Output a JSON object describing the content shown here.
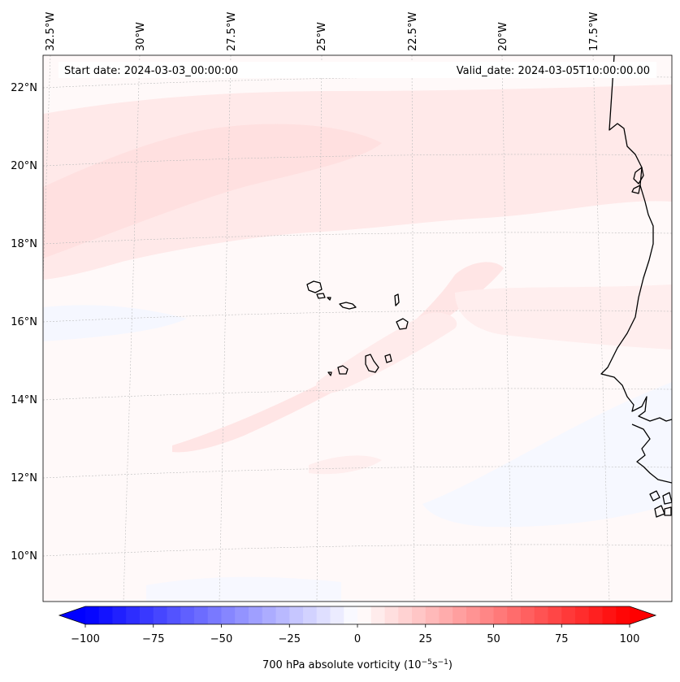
{
  "map": {
    "start_label": "Start date: 2024-03-03_00:00:00",
    "valid_label": "Valid_date: 2024-03-05T10:00:00.00",
    "lon_labels": [
      "32.5°W",
      "30°W",
      "27.5°W",
      "25°W",
      "22.5°W",
      "20°W",
      "17.5°W"
    ],
    "lat_labels": [
      "22°N",
      "20°N",
      "18°N",
      "16°N",
      "14°N",
      "12°N",
      "10°N"
    ],
    "field": "700 hPa absolute vorticity",
    "colorbar": {
      "label": "700 hPa absolute vorticity (10",
      "label_exp1": "−5",
      "label_mid": "s",
      "label_exp2": "−1",
      "label_end": ")",
      "min": -100,
      "max": 100,
      "ticks": [
        "−100",
        "−75",
        "−50",
        "−25",
        "0",
        "25",
        "50",
        "75",
        "100"
      ],
      "tick_values": [
        -100,
        -75,
        -50,
        -25,
        0,
        25,
        50,
        75,
        100
      ],
      "levels": 40
    },
    "colors": {
      "negative": "#0000ff",
      "positive": "#ff0000",
      "neutral": "#ffffff",
      "coast": "#000000",
      "grid": "#bbbbbb"
    }
  }
}
